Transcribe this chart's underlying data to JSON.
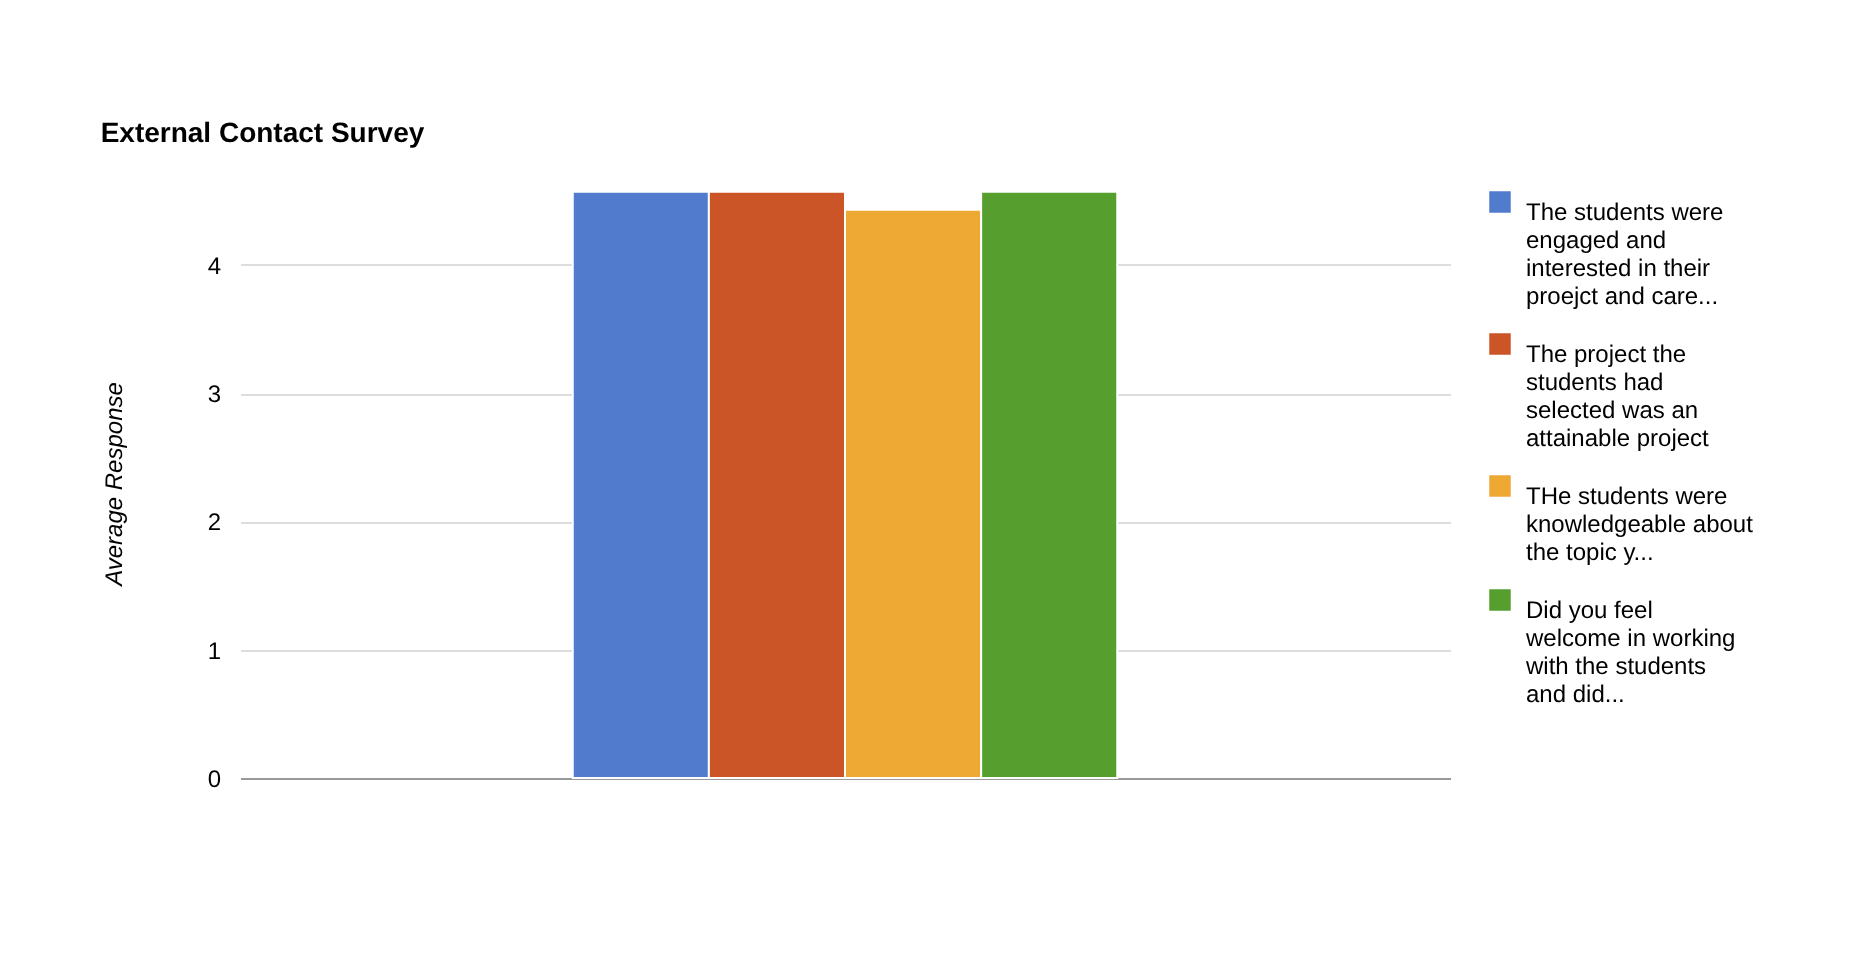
{
  "chart_data": {
    "type": "bar",
    "title": "External Contact Survey",
    "ylabel": "Average Response",
    "categories": [
      null
    ],
    "series": [
      {
        "name": "The students were engaged and interested in their proejct and care...",
        "color": "#517cce",
        "values": [
          4.57
        ]
      },
      {
        "name": "The project the students had selected was an attainable project",
        "color": "#cb5526",
        "values": [
          4.57
        ]
      },
      {
        "name": "THe students were knowledgeable about the topic y...",
        "color": "#eea834",
        "values": [
          4.43
        ]
      },
      {
        "name": "Did you feel welcome in working with the students and did...",
        "color": "#569e2d",
        "values": [
          4.57
        ]
      }
    ],
    "ylim": [
      0,
      4.6
    ],
    "yticks": [
      0,
      1,
      2,
      3,
      4
    ],
    "grid": "y",
    "legend": "right"
  }
}
